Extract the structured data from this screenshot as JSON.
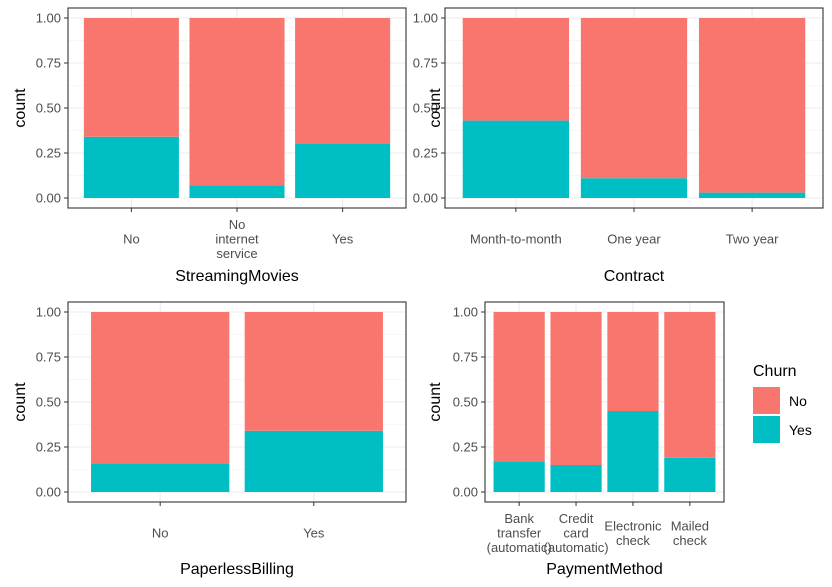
{
  "legend": {
    "title": "Churn",
    "entries": [
      {
        "label": "No",
        "color": "#F8766D"
      },
      {
        "label": "Yes",
        "color": "#00BFC4"
      }
    ]
  },
  "chart_data": [
    {
      "type": "bar",
      "stacked": true,
      "position": "fill",
      "xlabel": "StreamingMovies",
      "ylabel": "count",
      "ylim": [
        0,
        1
      ],
      "yticks": [
        "0.00",
        "0.25",
        "0.50",
        "0.75",
        "1.00"
      ],
      "categories": [
        [
          "No"
        ],
        [
          "No",
          "internet",
          "service"
        ],
        [
          "Yes"
        ]
      ],
      "series": [
        {
          "name": "No",
          "values": [
            0.66,
            0.93,
            0.7
          ]
        },
        {
          "name": "Yes",
          "values": [
            0.34,
            0.07,
            0.3
          ]
        }
      ]
    },
    {
      "type": "bar",
      "stacked": true,
      "position": "fill",
      "xlabel": "Contract",
      "ylabel": "count",
      "ylim": [
        0,
        1
      ],
      "yticks": [
        "0.00",
        "0.25",
        "0.50",
        "0.75",
        "1.00"
      ],
      "categories": [
        [
          "Month-to-month"
        ],
        [
          "One year"
        ],
        [
          "Two year"
        ]
      ],
      "series": [
        {
          "name": "No",
          "values": [
            0.57,
            0.89,
            0.97
          ]
        },
        {
          "name": "Yes",
          "values": [
            0.43,
            0.11,
            0.03
          ]
        }
      ]
    },
    {
      "type": "bar",
      "stacked": true,
      "position": "fill",
      "xlabel": "PaperlessBilling",
      "ylabel": "count",
      "ylim": [
        0,
        1
      ],
      "yticks": [
        "0.00",
        "0.25",
        "0.50",
        "0.75",
        "1.00"
      ],
      "categories": [
        [
          "No"
        ],
        [
          "Yes"
        ]
      ],
      "series": [
        {
          "name": "No",
          "values": [
            0.84,
            0.66
          ]
        },
        {
          "name": "Yes",
          "values": [
            0.16,
            0.34
          ]
        }
      ]
    },
    {
      "type": "bar",
      "stacked": true,
      "position": "fill",
      "xlabel": "PaymentMethod",
      "ylabel": "count",
      "ylim": [
        0,
        1
      ],
      "yticks": [
        "0.00",
        "0.25",
        "0.50",
        "0.75",
        "1.00"
      ],
      "categories": [
        [
          "Bank",
          "transfer",
          "(automatic)"
        ],
        [
          "Credit",
          "card",
          "(automatic)"
        ],
        [
          "Electronic",
          "check"
        ],
        [
          "Mailed",
          "check"
        ]
      ],
      "series": [
        {
          "name": "No",
          "values": [
            0.83,
            0.85,
            0.55,
            0.81
          ]
        },
        {
          "name": "Yes",
          "values": [
            0.17,
            0.15,
            0.45,
            0.19
          ]
        }
      ]
    }
  ]
}
